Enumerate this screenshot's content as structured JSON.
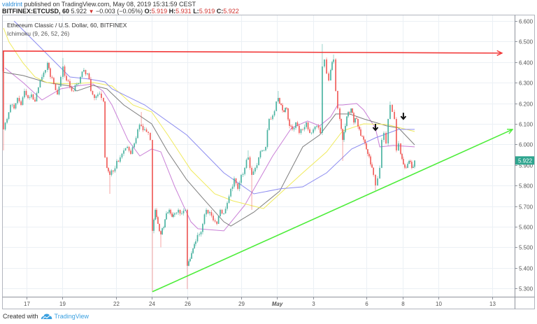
{
  "header": {
    "author": "valdrint",
    "published": " published on TradingView.com, May 08, 2019 15:31:59 CEST"
  },
  "symbol_bar": {
    "symbol": "BITFINEX:ETCUSD, 60",
    "last": "5.922",
    "change_icon": "down-triangle-icon",
    "change_glyph": "▼",
    "change": "−0.003 (−0.05%)",
    "ohlc": [
      {
        "label": "O:",
        "value": "5.919"
      },
      {
        "label": "H:",
        "value": "5.931"
      },
      {
        "label": "L:",
        "value": "5.919"
      },
      {
        "label": "C:",
        "value": "5.922"
      }
    ]
  },
  "legend": {
    "title": "Ethereum Classic / U.S. Dollar, 60, BITFINEX",
    "indicator": "Ichimoku (9, 26, 52, 26)"
  },
  "footer": {
    "prefix": "Created with",
    "logo_icon": "tradingview-cloud-icon",
    "brand": "TradingView"
  },
  "colors": {
    "up": "#3fae9b",
    "down": "#ef5350",
    "grid": "#ebf0f5",
    "frame": "#b2b5be",
    "resistance_line": "#f23a3a",
    "trend_line": "#4ded3a",
    "last_price_bg": "#2fa58f",
    "author": "#2e8fd8"
  },
  "chart_data": {
    "type": "bar",
    "style": "candlestick",
    "title": "Ethereum Classic / U.S. Dollar, 60, BITFINEX",
    "symbol": "BITFINEX:ETCUSD",
    "interval": "60",
    "xlabel": "",
    "ylabel": "",
    "x_unit": "days since Apr 17, 2019",
    "ylim": [
      5.25,
      6.62
    ],
    "grid": true,
    "y_ticks": [
      "6.600",
      "6.500",
      "6.400",
      "6.300",
      "6.200",
      "6.100",
      "6.000",
      "5.900",
      "5.800",
      "5.700",
      "5.600",
      "5.500",
      "5.400",
      "5.300"
    ],
    "x_ticks": [
      {
        "label": "17",
        "t": 0
      },
      {
        "label": "19",
        "t": 2
      },
      {
        "label": "22",
        "t": 5
      },
      {
        "label": "24",
        "t": 7
      },
      {
        "label": "26",
        "t": 9
      },
      {
        "label": "29",
        "t": 12
      },
      {
        "label": "May",
        "t": 14
      },
      {
        "label": "3",
        "t": 16
      },
      {
        "label": "6",
        "t": 19
      },
      {
        "label": "8",
        "t": 21
      },
      {
        "label": "10",
        "t": 23
      },
      {
        "label": "13",
        "t": 26
      }
    ],
    "last_price": {
      "value": 5.922,
      "label": "5.922"
    },
    "first_open": 6.454,
    "candles_format": "[t, close, high|null, low|null]",
    "candles": [
      [
        -1.29,
        6.073,
        6.454,
        5.971
      ],
      [
        -1.09,
        6.124
      ],
      [
        -0.9,
        6.192
      ],
      [
        -0.7,
        6.175
      ],
      [
        -0.51,
        6.226
      ],
      [
        -0.31,
        6.192
      ],
      [
        -0.12,
        6.26
      ],
      [
        0.08,
        6.226
      ],
      [
        0.27,
        6.243
      ],
      [
        0.47,
        6.209
      ],
      [
        0.66,
        6.277
      ],
      [
        0.86,
        6.328
      ],
      [
        1.05,
        6.362
      ],
      [
        1.17,
        6.396,
        6.403,
        null
      ],
      [
        1.33,
        6.328
      ],
      [
        1.52,
        6.294
      ],
      [
        1.72,
        6.243
      ],
      [
        1.91,
        6.328
      ],
      [
        2.03,
        6.379,
        6.42,
        null
      ],
      [
        2.23,
        6.311
      ],
      [
        2.42,
        6.277
      ],
      [
        2.62,
        6.26
      ],
      [
        2.81,
        6.294
      ],
      [
        3.01,
        6.328
      ],
      [
        3.2,
        6.362,
        6.372,
        null
      ],
      [
        3.4,
        6.345
      ],
      [
        3.59,
        6.26
      ],
      [
        3.79,
        6.226
      ],
      [
        3.98,
        6.243
      ],
      [
        4.18,
        6.226
      ],
      [
        4.3,
        6.209
      ],
      [
        4.38,
        5.937
      ],
      [
        4.49,
        5.886
      ],
      [
        4.65,
        5.852,
        null,
        5.76
      ],
      [
        4.84,
        5.869
      ],
      [
        5.04,
        5.92
      ],
      [
        5.23,
        5.937
      ],
      [
        5.43,
        5.971
      ],
      [
        5.63,
        5.988
      ],
      [
        5.82,
        5.954
      ],
      [
        6.02,
        6.005
      ],
      [
        6.21,
        6.073
      ],
      [
        6.41,
        6.09,
        6.158,
        null
      ],
      [
        6.6,
        6.073
      ],
      [
        6.8,
        6.056
      ],
      [
        6.91,
        6.022
      ],
      [
        7.03,
        5.58,
        null,
        5.284
      ],
      [
        7.19,
        5.682
      ],
      [
        7.34,
        5.614
      ],
      [
        7.5,
        5.563,
        null,
        5.5
      ],
      [
        7.66,
        5.597
      ],
      [
        7.81,
        5.665
      ],
      [
        7.97,
        5.682
      ],
      [
        8.13,
        5.648
      ],
      [
        8.28,
        5.665
      ],
      [
        8.48,
        5.682
      ],
      [
        8.67,
        5.665
      ],
      [
        8.87,
        5.682
      ],
      [
        8.98,
        5.41,
        null,
        5.297
      ],
      [
        9.14,
        5.444
      ],
      [
        9.3,
        5.495
      ],
      [
        9.45,
        5.529
      ],
      [
        9.65,
        5.563
      ],
      [
        9.84,
        5.614
      ],
      [
        10.04,
        5.682
      ],
      [
        10.23,
        5.671
      ],
      [
        10.43,
        5.631
      ],
      [
        10.63,
        5.614
      ],
      [
        10.82,
        5.682
      ],
      [
        11.02,
        5.665
      ],
      [
        11.21,
        5.716
      ],
      [
        11.41,
        5.784
      ],
      [
        11.6,
        5.835
      ],
      [
        11.8,
        5.784
      ],
      [
        11.99,
        5.852
      ],
      [
        12.19,
        5.886
      ],
      [
        12.38,
        5.937,
        5.971,
        null
      ],
      [
        12.58,
        5.852,
        null,
        5.682
      ],
      [
        12.77,
        5.886
      ],
      [
        12.97,
        5.937
      ],
      [
        13.16,
        5.971
      ],
      [
        13.36,
        5.988
      ],
      [
        13.55,
        6.124
      ],
      [
        13.75,
        6.141
      ],
      [
        13.95,
        6.209
      ],
      [
        14.06,
        6.226,
        6.26,
        null
      ],
      [
        14.22,
        6.192
      ],
      [
        14.38,
        6.158
      ],
      [
        14.53,
        6.175
      ],
      [
        14.69,
        6.09
      ],
      [
        14.84,
        6.073
      ],
      [
        15.04,
        6.107
      ],
      [
        15.23,
        6.056
      ],
      [
        15.43,
        6.073
      ],
      [
        15.63,
        6.107
      ],
      [
        15.82,
        6.056
      ],
      [
        16.02,
        6.073
      ],
      [
        16.21,
        6.09
      ],
      [
        16.41,
        6.056
      ],
      [
        16.52,
        6.379,
        6.488,
        null
      ],
      [
        16.64,
        6.413
      ],
      [
        16.76,
        6.345
      ],
      [
        16.88,
        6.311
      ],
      [
        16.99,
        6.362
      ],
      [
        17.15,
        6.413,
        6.437,
        null
      ],
      [
        17.27,
        6.26
      ],
      [
        17.38,
        6.175
      ],
      [
        17.5,
        6.124
      ],
      [
        17.66,
        6.022,
        null,
        5.92
      ],
      [
        17.81,
        6.09
      ],
      [
        17.97,
        6.158
      ],
      [
        18.13,
        6.175
      ],
      [
        18.28,
        6.107
      ],
      [
        18.44,
        6.124
      ],
      [
        18.59,
        6.073
      ],
      [
        18.75,
        6.039
      ],
      [
        18.91,
        6.005
      ],
      [
        19.06,
        5.954
      ],
      [
        19.22,
        5.903
      ],
      [
        19.38,
        5.852
      ],
      [
        19.49,
        5.801,
        null,
        5.777
      ],
      [
        19.61,
        5.835
      ],
      [
        19.73,
        5.886
      ],
      [
        19.84,
        6.022
      ],
      [
        19.96,
        6.056
      ],
      [
        20.08,
        6.005
      ],
      [
        20.2,
        6.124
      ],
      [
        20.31,
        6.192,
        6.209,
        null
      ],
      [
        20.43,
        6.158
      ],
      [
        20.55,
        6.124
      ],
      [
        20.66,
        5.971
      ],
      [
        20.78,
        6.005
      ],
      [
        20.9,
        5.954
      ],
      [
        21.05,
        5.903
      ],
      [
        21.21,
        5.886
      ],
      [
        21.37,
        5.92
      ],
      [
        21.52,
        5.886
      ],
      [
        21.68,
        5.922
      ]
    ],
    "series": [
      {
        "name": "Ichimoku line (purple)",
        "color": "#c97fd6",
        "points": [
          [
            -1.21,
            6.372
          ],
          [
            -0.2,
            6.301
          ],
          [
            0.86,
            6.216
          ],
          [
            1.91,
            6.27
          ],
          [
            2.81,
            6.284
          ],
          [
            3.71,
            6.294
          ],
          [
            4.26,
            6.26
          ],
          [
            4.77,
            6.192
          ],
          [
            5.66,
            6.022
          ],
          [
            6.33,
            5.944
          ],
          [
            6.99,
            5.978
          ],
          [
            7.5,
            5.964
          ],
          [
            8.28,
            5.794
          ],
          [
            9.18,
            5.624
          ],
          [
            9.57,
            5.59
          ],
          [
            11.02,
            5.58
          ],
          [
            12.19,
            5.705
          ],
          [
            13.75,
            5.944
          ],
          [
            14.8,
            6.08
          ],
          [
            15.7,
            6.114
          ],
          [
            16.37,
            6.09
          ],
          [
            16.99,
            6.134
          ],
          [
            17.38,
            6.192
          ],
          [
            17.66,
            6.192
          ],
          [
            18.44,
            6.199
          ],
          [
            18.83,
            6.168
          ],
          [
            19.49,
            6.08
          ],
          [
            19.73,
            5.988
          ],
          [
            20.51,
            5.995
          ],
          [
            21.68,
            5.988
          ]
        ]
      },
      {
        "name": "Ichimoku line (gray)",
        "color": "#7d7d7d",
        "points": [
          [
            -1.37,
            6.352
          ],
          [
            -0.2,
            6.335
          ],
          [
            1.13,
            6.301
          ],
          [
            2.42,
            6.284
          ],
          [
            2.81,
            6.26
          ],
          [
            3.71,
            6.287
          ],
          [
            4.49,
            6.27
          ],
          [
            5.43,
            6.192
          ],
          [
            6.99,
            6.1
          ],
          [
            7.89,
            5.964
          ],
          [
            8.95,
            5.828
          ],
          [
            9.84,
            5.739
          ],
          [
            11.02,
            5.624
          ],
          [
            11.41,
            5.603
          ],
          [
            12.7,
            5.671
          ],
          [
            14.14,
            5.773
          ],
          [
            15.43,
            5.988
          ],
          [
            16.37,
            6.046
          ],
          [
            17.27,
            6.148
          ],
          [
            18.05,
            6.148
          ],
          [
            18.83,
            6.124
          ],
          [
            20.12,
            6.09
          ],
          [
            20.78,
            6.08
          ],
          [
            21.68,
            5.998
          ]
        ]
      },
      {
        "name": "Ichimoku line (yellow)",
        "color": "#f0ea5c",
        "points": [
          [
            -1.29,
            6.566
          ],
          [
            -0.98,
            6.498
          ],
          [
            -0.2,
            6.396
          ],
          [
            0.47,
            6.328
          ],
          [
            1.13,
            6.301
          ],
          [
            2.42,
            6.294
          ],
          [
            3.71,
            6.301
          ],
          [
            4.77,
            6.284
          ],
          [
            5.94,
            6.192
          ],
          [
            6.99,
            6.158
          ],
          [
            7.89,
            6.046
          ],
          [
            9.18,
            5.876
          ],
          [
            10.51,
            5.76
          ],
          [
            11.52,
            5.726
          ],
          [
            13.24,
            5.688
          ],
          [
            14.14,
            5.76
          ],
          [
            15.43,
            5.862
          ],
          [
            16.76,
            5.964
          ],
          [
            17.66,
            6.066
          ],
          [
            18.83,
            6.1
          ],
          [
            20.12,
            6.097
          ],
          [
            21.68,
            6.063
          ]
        ]
      },
      {
        "name": "Ichimoku line (blue)",
        "color": "#8c8cf0",
        "points": [
          [
            -0.7,
            6.6
          ],
          [
            0.47,
            6.498
          ],
          [
            2.42,
            6.328
          ],
          [
            3.48,
            6.318
          ],
          [
            4.38,
            6.304
          ],
          [
            4.77,
            6.27
          ],
          [
            6.6,
            6.192
          ],
          [
            8.95,
            6.046
          ],
          [
            11.02,
            5.862
          ],
          [
            12.7,
            5.76
          ],
          [
            14.14,
            5.784
          ],
          [
            15.43,
            5.794
          ],
          [
            16.76,
            5.862
          ],
          [
            18.16,
            5.978
          ],
          [
            19.49,
            6.032
          ],
          [
            20.78,
            6.073
          ],
          [
            21.68,
            6.073
          ]
        ]
      }
    ],
    "annotations": [
      {
        "type": "horizontal-arrow-line",
        "name": "resistance",
        "color": "#f23a3a",
        "from": [
          -1.33,
          6.454
        ],
        "to": [
          26.56,
          6.444
        ]
      },
      {
        "type": "trend-arrow-line",
        "name": "ascending support",
        "color": "#4ded3a",
        "from": [
          7.03,
          5.284
        ],
        "to": [
          27.15,
          6.073
        ]
      },
      {
        "type": "down-arrow-marker",
        "color": "#111111",
        "at": [
          19.49,
          6.083
        ]
      },
      {
        "type": "down-arrow-marker",
        "color": "#111111",
        "at": [
          21.05,
          6.137
        ]
      }
    ]
  }
}
